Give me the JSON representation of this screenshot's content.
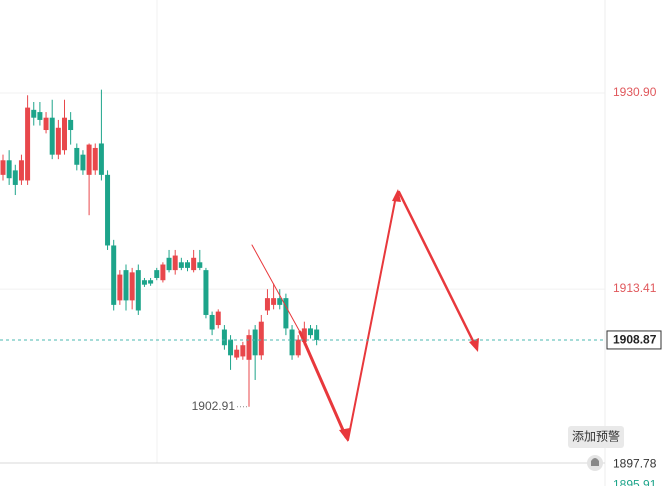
{
  "chart_data": {
    "type": "candlestick",
    "up_color": "#e8474b",
    "down_color": "#1da48a",
    "open": [
      1923.6,
      1924.9,
      1924.0,
      1923.1,
      1923.1,
      1929.4,
      1929.2,
      1927.6,
      1928.7,
      1925.4,
      1925.8,
      1928.5,
      1926.0,
      1925.4,
      1923.6,
      1924.0,
      1926.4,
      1923.6,
      1917.3,
      1912.4,
      1915.1,
      1912.4,
      1915.1,
      1914.2,
      1914.2,
      1915.1,
      1914.2,
      1916.2,
      1915.1,
      1915.8,
      1915.8,
      1915.1,
      1915.8,
      1915.1,
      1911.1,
      1910.2,
      1909.8,
      1908.9,
      1907.3,
      1907.4,
      1907.1,
      1909.8,
      1907.5,
      1911.5,
      1912.0,
      1912.6,
      1912.6,
      1909.8,
      1907.5,
      1908.7,
      1909.9,
      1909.8
    ],
    "high": [
      1925.4,
      1925.8,
      1924.5,
      1925.4,
      1930.7,
      1930.1,
      1930.1,
      1929.2,
      1930.3,
      1928.5,
      1930.3,
      1929.2,
      1926.4,
      1925.8,
      1926.4,
      1926.4,
      1931.2,
      1924.0,
      1917.8,
      1915.1,
      1915.6,
      1915.3,
      1915.6,
      1914.4,
      1914.4,
      1915.3,
      1915.8,
      1916.9,
      1916.9,
      1916.2,
      1916.0,
      1916.9,
      1916.9,
      1915.3,
      1911.4,
      1911.6,
      1910.2,
      1909.3,
      1908.4,
      1908.7,
      1909.8,
      1910.2,
      1911.1,
      1913.4,
      1913.9,
      1913.4,
      1913.0,
      1910.2,
      1909.3,
      1910.5,
      1910.2,
      1910.2
    ],
    "low": [
      1923.1,
      1922.7,
      1921.8,
      1922.7,
      1922.7,
      1928.0,
      1928.0,
      1927.3,
      1925.0,
      1925.0,
      1925.4,
      1926.3,
      1924.0,
      1923.6,
      1920.0,
      1923.6,
      1923.1,
      1916.9,
      1911.5,
      1912.0,
      1911.5,
      1911.6,
      1911.1,
      1913.6,
      1913.7,
      1914.2,
      1914.0,
      1914.9,
      1914.7,
      1915.1,
      1915.0,
      1914.9,
      1915.1,
      1910.8,
      1909.3,
      1909.9,
      1908.0,
      1906.2,
      1907.1,
      1907.1,
      1902.91,
      1905.3,
      1907.1,
      1911.1,
      1911.6,
      1911.6,
      1909.3,
      1907.1,
      1907.3,
      1908.4,
      1909.0,
      1908.4
    ],
    "close": [
      1924.9,
      1923.3,
      1922.7,
      1924.9,
      1929.6,
      1928.7,
      1928.5,
      1928.7,
      1925.4,
      1927.8,
      1928.7,
      1927.6,
      1924.5,
      1924.0,
      1926.3,
      1926.0,
      1923.6,
      1917.3,
      1912.0,
      1914.7,
      1912.4,
      1914.9,
      1911.5,
      1913.8,
      1913.9,
      1914.4,
      1915.6,
      1915.1,
      1916.4,
      1915.3,
      1915.3,
      1916.2,
      1915.3,
      1911.1,
      1909.8,
      1911.4,
      1908.4,
      1907.5,
      1908.0,
      1908.4,
      1909.3,
      1907.5,
      1910.5,
      1912.6,
      1912.6,
      1912.0,
      1909.9,
      1907.5,
      1908.9,
      1909.9,
      1909.3,
      1908.87
    ],
    "ylim": [
      1895.84,
      1939.2
    ],
    "yticks": [
      {
        "value": 1930.9,
        "label": "1930.90"
      },
      1913.41
    ],
    "grid": true,
    "current_price": {
      "value": 1908.87,
      "label": "1908.87"
    },
    "alert_price": {
      "value": 1897.78,
      "label": "1897.78"
    },
    "bottom_price": {
      "value": 1895.91,
      "label": "1895.91"
    },
    "alert_button": "添加预警"
  }
}
